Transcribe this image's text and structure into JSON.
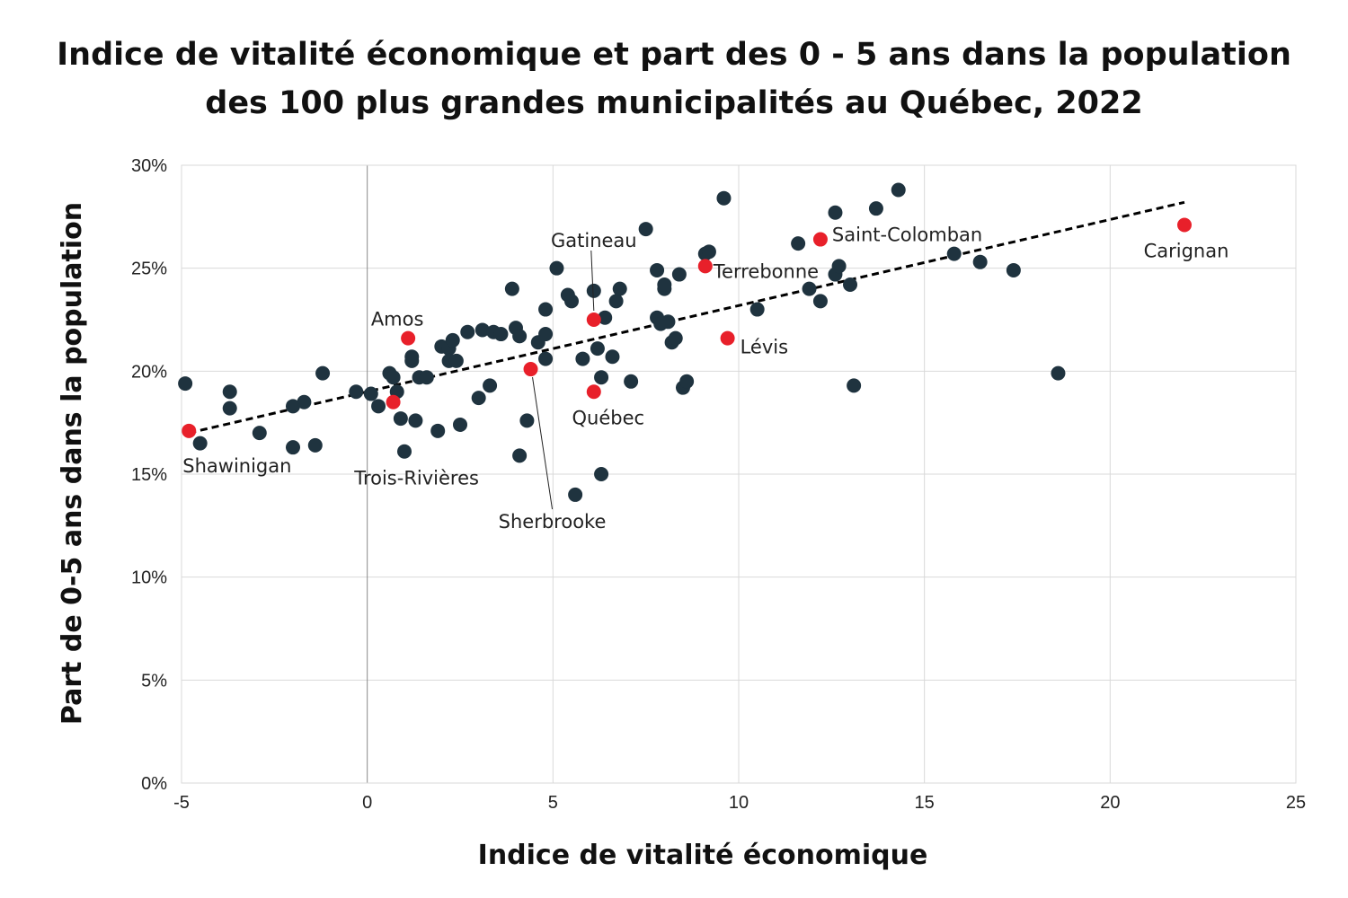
{
  "chart_data": {
    "type": "scatter",
    "title_lines": [
      "Indice de vitalité économique et part des 0 - 5 ans dans la population",
      "des 100 plus grandes municipalités au Québec, 2022"
    ],
    "xlabel": "Indice de vitalité économique",
    "ylabel": "Part de 0-5 ans dans la population",
    "xlim": [
      -5,
      25
    ],
    "ylim": [
      0,
      30
    ],
    "x_ticks": [
      -5,
      0,
      5,
      10,
      15,
      20,
      25
    ],
    "x_tick_labels": [
      "-5",
      "0",
      "5",
      "10",
      "15",
      "20",
      "25"
    ],
    "y_ticks": [
      0,
      5,
      10,
      15,
      20,
      25,
      30
    ],
    "y_tick_labels": [
      "0%",
      "5%",
      "10%",
      "15%",
      "20%",
      "25%",
      "30%"
    ],
    "grid": true,
    "colors": {
      "points": "#1f333f",
      "highlight": "#e8202a",
      "trendline": "#000000",
      "grid": "#d9d9d9"
    },
    "trendline": {
      "style": "dashed",
      "x": [
        -4.8,
        22.0
      ],
      "y": [
        17.0,
        28.2
      ]
    },
    "points": [
      [
        -4.9,
        19.4
      ],
      [
        -4.5,
        16.5
      ],
      [
        -3.7,
        19.0
      ],
      [
        -3.7,
        18.2
      ],
      [
        -2.9,
        17.0
      ],
      [
        -2.0,
        18.3
      ],
      [
        -2.0,
        16.3
      ],
      [
        -1.7,
        18.5
      ],
      [
        -1.4,
        16.4
      ],
      [
        -1.2,
        19.9
      ],
      [
        -0.3,
        19.0
      ],
      [
        0.1,
        18.9
      ],
      [
        0.3,
        18.3
      ],
      [
        0.6,
        19.9
      ],
      [
        0.7,
        19.7
      ],
      [
        0.8,
        19.0
      ],
      [
        0.9,
        17.7
      ],
      [
        1.0,
        16.1
      ],
      [
        1.2,
        20.5
      ],
      [
        1.2,
        20.7
      ],
      [
        1.3,
        17.6
      ],
      [
        1.4,
        19.7
      ],
      [
        1.6,
        19.7
      ],
      [
        1.9,
        17.1
      ],
      [
        2.0,
        21.2
      ],
      [
        2.2,
        21.1
      ],
      [
        2.2,
        20.5
      ],
      [
        2.3,
        21.5
      ],
      [
        2.4,
        20.5
      ],
      [
        2.5,
        17.4
      ],
      [
        2.7,
        21.9
      ],
      [
        3.0,
        18.7
      ],
      [
        3.1,
        22.0
      ],
      [
        3.3,
        19.3
      ],
      [
        3.4,
        21.9
      ],
      [
        3.6,
        21.8
      ],
      [
        3.9,
        24.0
      ],
      [
        4.0,
        22.1
      ],
      [
        4.1,
        21.7
      ],
      [
        4.1,
        15.9
      ],
      [
        4.3,
        17.6
      ],
      [
        4.6,
        21.4
      ],
      [
        4.8,
        21.8
      ],
      [
        4.8,
        23.0
      ],
      [
        4.8,
        20.6
      ],
      [
        5.1,
        25.0
      ],
      [
        5.4,
        23.7
      ],
      [
        5.5,
        23.4
      ],
      [
        5.6,
        14.0
      ],
      [
        5.8,
        20.6
      ],
      [
        6.1,
        23.9
      ],
      [
        6.2,
        21.1
      ],
      [
        6.3,
        19.7
      ],
      [
        6.3,
        15.0
      ],
      [
        6.4,
        22.6
      ],
      [
        6.6,
        20.7
      ],
      [
        6.7,
        23.4
      ],
      [
        6.8,
        24.0
      ],
      [
        7.1,
        19.5
      ],
      [
        7.5,
        26.9
      ],
      [
        7.8,
        24.9
      ],
      [
        7.8,
        22.6
      ],
      [
        7.9,
        22.3
      ],
      [
        8.0,
        24.0
      ],
      [
        8.0,
        24.2
      ],
      [
        8.1,
        22.4
      ],
      [
        8.2,
        21.4
      ],
      [
        8.3,
        21.6
      ],
      [
        8.4,
        24.7
      ],
      [
        8.5,
        19.2
      ],
      [
        8.6,
        19.5
      ],
      [
        9.1,
        25.7
      ],
      [
        9.2,
        25.8
      ],
      [
        9.6,
        28.4
      ],
      [
        10.5,
        23.0
      ],
      [
        11.6,
        26.2
      ],
      [
        11.9,
        24.0
      ],
      [
        12.2,
        23.4
      ],
      [
        12.6,
        27.7
      ],
      [
        12.6,
        24.7
      ],
      [
        12.7,
        25.1
      ],
      [
        13.0,
        24.2
      ],
      [
        13.1,
        19.3
      ],
      [
        13.7,
        27.9
      ],
      [
        14.3,
        28.8
      ],
      [
        15.8,
        25.7
      ],
      [
        16.5,
        25.3
      ],
      [
        17.4,
        24.9
      ],
      [
        18.6,
        19.9
      ]
    ],
    "highlighted": [
      {
        "name": "Shawinigan",
        "x": -4.8,
        "y": 17.1
      },
      {
        "name": "Trois-Rivières",
        "x": 0.7,
        "y": 18.5
      },
      {
        "name": "Amos",
        "x": 1.1,
        "y": 21.6
      },
      {
        "name": "Sherbrooke",
        "x": 4.4,
        "y": 20.1
      },
      {
        "name": "Gatineau",
        "x": 6.1,
        "y": 22.5
      },
      {
        "name": "Québec",
        "x": 6.1,
        "y": 19.0
      },
      {
        "name": "Terrebonne",
        "x": 9.1,
        "y": 25.1
      },
      {
        "name": "Lévis",
        "x": 9.7,
        "y": 21.6
      },
      {
        "name": "Saint-Colomban",
        "x": 12.2,
        "y": 26.4
      },
      {
        "name": "Carignan",
        "x": 22.0,
        "y": 27.1
      }
    ]
  }
}
